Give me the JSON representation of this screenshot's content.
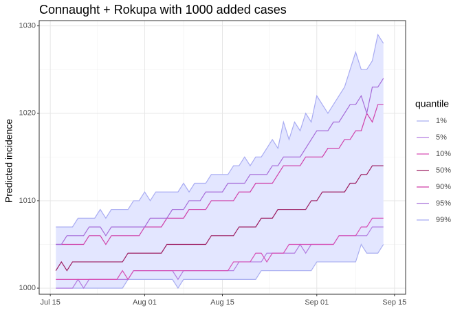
{
  "chart_data": {
    "type": "line",
    "title": "Connaught + Rokupa with 1000 added cases",
    "y_label": "Predicted incidence",
    "legend_title": "quantile",
    "legend": "right",
    "grid": true,
    "ribbon_color": "#e3e6ff",
    "x": [
      "Jul 16",
      "Jul 17",
      "Jul 18",
      "Jul 19",
      "Jul 20",
      "Jul 21",
      "Jul 22",
      "Jul 23",
      "Jul 24",
      "Jul 25",
      "Jul 26",
      "Jul 27",
      "Jul 28",
      "Jul 29",
      "Jul 30",
      "Jul 31",
      "Aug 01",
      "Aug 02",
      "Aug 03",
      "Aug 04",
      "Aug 05",
      "Aug 06",
      "Aug 07",
      "Aug 08",
      "Aug 09",
      "Aug 10",
      "Aug 11",
      "Aug 12",
      "Aug 13",
      "Aug 14",
      "Aug 15",
      "Aug 16",
      "Aug 17",
      "Aug 18",
      "Aug 19",
      "Aug 20",
      "Aug 21",
      "Aug 22",
      "Aug 23",
      "Aug 24",
      "Aug 25",
      "Aug 26",
      "Aug 27",
      "Aug 28",
      "Aug 29",
      "Aug 30",
      "Aug 31",
      "Sep 01",
      "Sep 02",
      "Sep 03",
      "Sep 04",
      "Sep 05",
      "Sep 06",
      "Sep 07",
      "Sep 08",
      "Sep 09",
      "Sep 10",
      "Sep 11",
      "Sep 12",
      "Sep 13"
    ],
    "xlim": [
      "Jul 13",
      "Sep 17"
    ],
    "xticks": [
      "Jul 15",
      "Aug 01",
      "Aug 15",
      "Sep 01",
      "Sep 15"
    ],
    "ylim": [
      999.3,
      1030.6
    ],
    "yticks": [
      1000,
      1010,
      1020,
      1030
    ],
    "series": [
      {
        "name": "1%",
        "color": "#a9aef0",
        "values": [
          1000,
          1000,
          1000,
          1000,
          1000,
          1000,
          1000,
          1000,
          1000,
          1000,
          1000,
          1000,
          1000,
          1001,
          1001,
          1001,
          1001,
          1001,
          1001,
          1001,
          1001,
          1001,
          1000,
          1001,
          1001,
          1001,
          1001,
          1001,
          1001,
          1001,
          1001,
          1001,
          1001,
          1001,
          1001,
          1001,
          1001,
          1002,
          1002,
          1002,
          1002,
          1002,
          1002,
          1002,
          1002,
          1002,
          1002,
          1003,
          1003,
          1003,
          1003,
          1003,
          1003,
          1003,
          1003,
          1005,
          1004,
          1004,
          1004,
          1005
        ]
      },
      {
        "name": "5%",
        "color": "#b27be0",
        "values": [
          1000,
          1000,
          1000,
          1000,
          1001,
          1000,
          1001,
          1001,
          1001,
          1001,
          1001,
          1001,
          1001,
          1001,
          1002,
          1002,
          1002,
          1002,
          1002,
          1002,
          1002,
          1002,
          1001,
          1002,
          1002,
          1002,
          1002,
          1002,
          1002,
          1002,
          1002,
          1002,
          1002,
          1003,
          1003,
          1003,
          1003,
          1003,
          1004,
          1004,
          1004,
          1004,
          1004,
          1004,
          1005,
          1004,
          1005,
          1005,
          1005,
          1005,
          1005,
          1006,
          1006,
          1006,
          1006,
          1006,
          1006,
          1007,
          1007,
          1007
        ]
      },
      {
        "name": "10%",
        "color": "#d64fb5",
        "values": [
          1001,
          1001,
          1001,
          1001,
          1001,
          1001,
          1001,
          1001,
          1001,
          1001,
          1001,
          1001,
          1002,
          1001,
          1002,
          1002,
          1002,
          1002,
          1002,
          1002,
          1002,
          1002,
          1002,
          1002,
          1002,
          1002,
          1002,
          1002,
          1002,
          1002,
          1002,
          1002,
          1003,
          1003,
          1003,
          1003,
          1004,
          1004,
          1003,
          1004,
          1004,
          1004,
          1005,
          1005,
          1005,
          1005,
          1005,
          1005,
          1005,
          1005,
          1005,
          1006,
          1006,
          1006,
          1006,
          1007,
          1007,
          1008,
          1008,
          1008
        ]
      },
      {
        "name": "50%",
        "color": "#9b1a5f",
        "values": [
          1002,
          1003,
          1002,
          1003,
          1003,
          1003,
          1003,
          1003,
          1003,
          1003,
          1003,
          1003,
          1003,
          1004,
          1004,
          1004,
          1004,
          1004,
          1004,
          1004,
          1005,
          1005,
          1005,
          1005,
          1005,
          1005,
          1005,
          1005,
          1006,
          1006,
          1006,
          1006,
          1006,
          1007,
          1007,
          1007,
          1007,
          1008,
          1008,
          1008,
          1009,
          1009,
          1009,
          1009,
          1009,
          1009,
          1010,
          1010,
          1011,
          1011,
          1011,
          1011,
          1011,
          1012,
          1012,
          1013,
          1013,
          1014,
          1014,
          1014
        ]
      },
      {
        "name": "90%",
        "color": "#cf3fa8",
        "values": [
          1005,
          1005,
          1005,
          1005,
          1005,
          1005,
          1006,
          1006,
          1006,
          1005,
          1006,
          1006,
          1006,
          1006,
          1006,
          1006,
          1007,
          1007,
          1007,
          1007,
          1008,
          1008,
          1008,
          1008,
          1009,
          1009,
          1009,
          1009,
          1010,
          1010,
          1010,
          1010,
          1010,
          1011,
          1011,
          1011,
          1012,
          1012,
          1012,
          1012,
          1013,
          1014,
          1014,
          1014,
          1014,
          1015,
          1015,
          1015,
          1015,
          1016,
          1016,
          1016,
          1017,
          1017,
          1018,
          1018,
          1020,
          1019,
          1021,
          1021
        ]
      },
      {
        "name": "95%",
        "color": "#a56ad8",
        "values": [
          1005,
          1005,
          1006,
          1006,
          1006,
          1006,
          1007,
          1007,
          1007,
          1006,
          1007,
          1007,
          1007,
          1007,
          1007,
          1007,
          1007,
          1008,
          1008,
          1008,
          1008,
          1009,
          1009,
          1009,
          1010,
          1010,
          1010,
          1011,
          1011,
          1011,
          1011,
          1012,
          1012,
          1012,
          1012,
          1013,
          1013,
          1013,
          1013,
          1014,
          1014,
          1015,
          1015,
          1015,
          1015,
          1016,
          1017,
          1018,
          1018,
          1018,
          1019,
          1019,
          1020,
          1021,
          1021,
          1022,
          1020,
          1023,
          1023,
          1024
        ]
      },
      {
        "name": "99%",
        "color": "#a8abf2",
        "values": [
          1007,
          1007,
          1007,
          1007,
          1008,
          1008,
          1008,
          1008,
          1009,
          1008,
          1009,
          1009,
          1009,
          1009,
          1010,
          1010,
          1011,
          1010,
          1011,
          1011,
          1011,
          1011,
          1011,
          1012,
          1011,
          1012,
          1012,
          1012,
          1013,
          1013,
          1013,
          1013,
          1014,
          1014,
          1015,
          1014,
          1015,
          1015,
          1016,
          1017,
          1016,
          1019,
          1017,
          1019,
          1018,
          1020,
          1019,
          1022,
          1021,
          1020,
          1021,
          1022,
          1023,
          1025,
          1027,
          1025,
          1025,
          1026,
          1029,
          1028
        ]
      }
    ]
  }
}
